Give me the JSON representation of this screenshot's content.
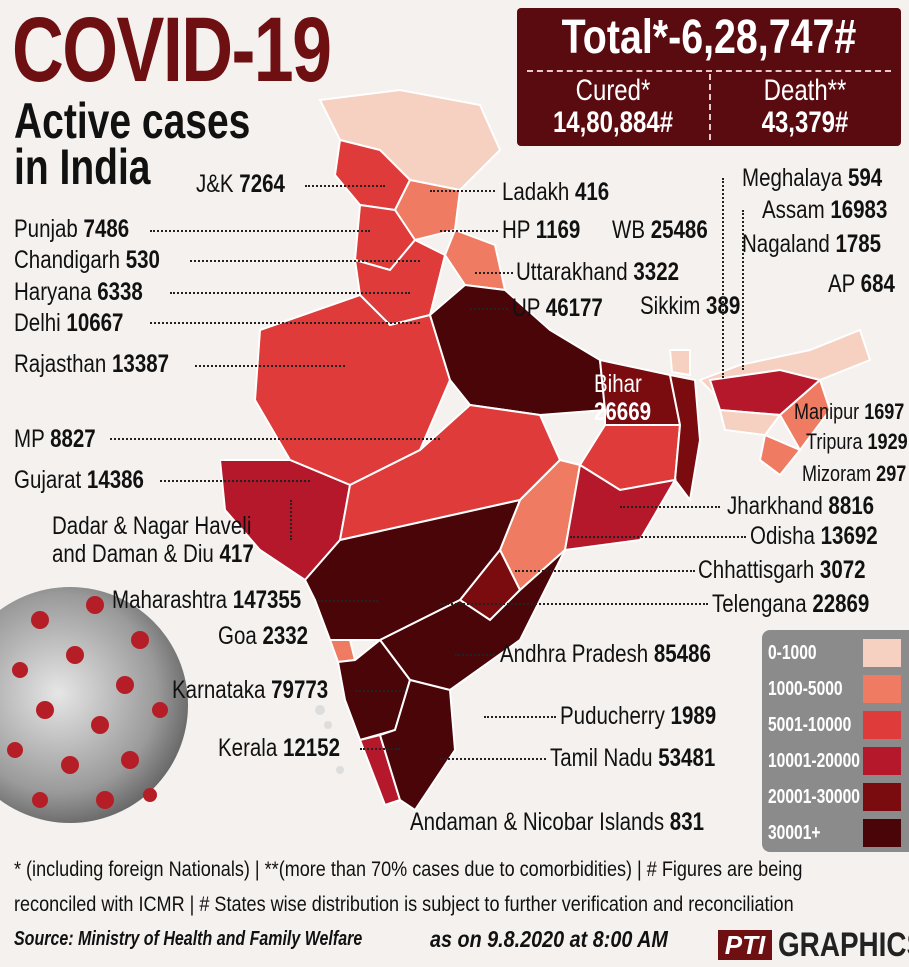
{
  "header": {
    "title": "COVID-19",
    "subtitle_line1": "Active cases",
    "subtitle_line2": "in India"
  },
  "totals": {
    "total": "Total*-6,28,747#",
    "cured_label": "Cured*",
    "cured_value": "14,80,884#",
    "death_label": "Death**",
    "death_value": "43,379#"
  },
  "states": [
    {
      "name": "J&K",
      "value": "7264"
    },
    {
      "name": "Ladakh",
      "value": "416"
    },
    {
      "name": "Punjab",
      "value": "7486"
    },
    {
      "name": "HP",
      "value": "1169"
    },
    {
      "name": "Chandigarh",
      "value": "530"
    },
    {
      "name": "Uttarakhand",
      "value": "3322"
    },
    {
      "name": "Haryana",
      "value": "6338"
    },
    {
      "name": "UP",
      "value": "46177"
    },
    {
      "name": "Delhi",
      "value": "10667"
    },
    {
      "name": "Rajasthan",
      "value": "13387"
    },
    {
      "name": "MP",
      "value": "8827"
    },
    {
      "name": "Gujarat",
      "value": "14386"
    },
    {
      "name": "Dadar & Nagar Haveli",
      "name2": "and Daman & Diu",
      "value": "417"
    },
    {
      "name": "Maharashtra",
      "value": "147355"
    },
    {
      "name": "Goa",
      "value": "2332"
    },
    {
      "name": "Karnataka",
      "value": "79773"
    },
    {
      "name": "Kerala",
      "value": "12152"
    },
    {
      "name": "Meghalaya",
      "value": "594"
    },
    {
      "name": "Assam",
      "value": "16983"
    },
    {
      "name": "WB",
      "value": "25486"
    },
    {
      "name": "Nagaland",
      "value": "1785"
    },
    {
      "name": "AP",
      "value": "684"
    },
    {
      "name": "Sikkim",
      "value": "389"
    },
    {
      "name": "Bihar",
      "value": "26669"
    },
    {
      "name": "Manipur",
      "value": "1697"
    },
    {
      "name": "Tripura",
      "value": "1929"
    },
    {
      "name": "Mizoram",
      "value": "297"
    },
    {
      "name": "Jharkhand",
      "value": "8816"
    },
    {
      "name": "Odisha",
      "value": "13692"
    },
    {
      "name": "Chhattisgarh",
      "value": "3072"
    },
    {
      "name": "Telengana",
      "value": "22869"
    },
    {
      "name": "Andhra Pradesh",
      "value": "85486"
    },
    {
      "name": "Puducherry",
      "value": "1989"
    },
    {
      "name": "Tamil Nadu",
      "value": "53481"
    },
    {
      "name": "Andaman & Nicobar Islands",
      "value": "831"
    }
  ],
  "legend": [
    {
      "label": "0-1000",
      "color": "#f6d0c0"
    },
    {
      "label": "1000-5000",
      "color": "#ee7b62"
    },
    {
      "label": "5001-10000",
      "color": "#de3b3a"
    },
    {
      "label": "10001-20000",
      "color": "#b4182a"
    },
    {
      "label": "20001-30000",
      "color": "#7a0c10"
    },
    {
      "label": "30001+",
      "color": "#4a0508"
    }
  ],
  "footer": {
    "note1": "* (including foreign Nationals) | **(more than 70% cases due to comorbidities) | # Figures are being",
    "note2": "reconciled with ICMR  | # States wise distribution is subject to further verification and reconciliation",
    "source": "Source: Ministry of Health and Family Welfare",
    "as_of": "as on 9.8.2020 at 8:00 AM",
    "brand_logo": "PTI",
    "brand_text": "GRAPHICS"
  },
  "icons": [
    "virus-illustration-icon",
    "india-map-icon"
  ]
}
